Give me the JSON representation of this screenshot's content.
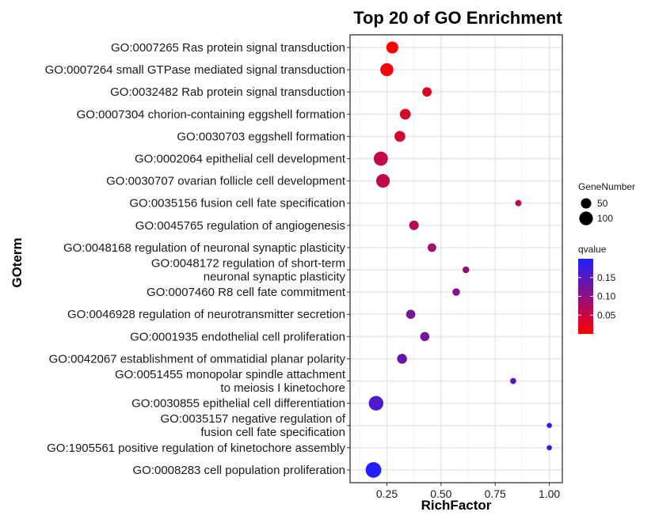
{
  "chart_data": {
    "type": "scatter",
    "title": "Top 20 of GO Enrichment",
    "xlabel": "RichFactor",
    "ylabel": "GOterm",
    "xlim": [
      0.08,
      1.06
    ],
    "xticks": [
      0.25,
      0.5,
      0.75,
      1.0
    ],
    "xtick_labels": [
      "0.25",
      "0.50",
      "0.75",
      "1.00"
    ],
    "grid": true,
    "terms": [
      {
        "label": [
          "GO:0007265 Ras protein signal transduction"
        ],
        "rich": 0.275,
        "genes": 72,
        "q": 0.001
      },
      {
        "label": [
          "GO:0007264 small GTPase mediated signal transduction"
        ],
        "rich": 0.25,
        "genes": 90,
        "q": 0.006
      },
      {
        "label": [
          "GO:0032482 Rab protein signal transduction"
        ],
        "rich": 0.435,
        "genes": 38,
        "q": 0.03
      },
      {
        "label": [
          "GO:0007304 chorion-containing eggshell formation"
        ],
        "rich": 0.335,
        "genes": 56,
        "q": 0.038
      },
      {
        "label": [
          "GO:0030703 eggshell formation"
        ],
        "rich": 0.31,
        "genes": 56,
        "q": 0.04
      },
      {
        "label": [
          "GO:0002064 epithelial cell development"
        ],
        "rich": 0.222,
        "genes": 110,
        "q": 0.055
      },
      {
        "label": [
          "GO:0030707 ovarian follicle cell development"
        ],
        "rich": 0.232,
        "genes": 100,
        "q": 0.056
      },
      {
        "label": [
          "GO:0035156 fusion cell fate specification"
        ],
        "rich": 0.857,
        "genes": 12,
        "q": 0.058
      },
      {
        "label": [
          "GO:0045765 regulation of angiogenesis"
        ],
        "rich": 0.375,
        "genes": 40,
        "q": 0.065
      },
      {
        "label": [
          "GO:0048168 regulation of neuronal synaptic plasticity"
        ],
        "rich": 0.458,
        "genes": 30,
        "q": 0.085
      },
      {
        "label": [
          "GO:0048172 regulation of short-term",
          "neuronal synaptic plasticity"
        ],
        "rich": 0.615,
        "genes": 14,
        "q": 0.095
      },
      {
        "label": [
          "GO:0007460 R8 cell fate commitment"
        ],
        "rich": 0.57,
        "genes": 20,
        "q": 0.11
      },
      {
        "label": [
          "GO:0046928 regulation of neurotransmitter secretion"
        ],
        "rich": 0.36,
        "genes": 36,
        "q": 0.12
      },
      {
        "label": [
          "GO:0001935 endothelial cell proliferation"
        ],
        "rich": 0.425,
        "genes": 36,
        "q": 0.125
      },
      {
        "label": [
          "GO:0042067 establishment of ommatidial planar polarity"
        ],
        "rich": 0.32,
        "genes": 44,
        "q": 0.135
      },
      {
        "label": [
          "GO:0051455 monopolar spindle attachment",
          "to meiosis I kinetochore"
        ],
        "rich": 0.833,
        "genes": 10,
        "q": 0.15
      },
      {
        "label": [
          "GO:0030855 epithelial cell differentiation"
        ],
        "rich": 0.2,
        "genes": 118,
        "q": 0.16
      },
      {
        "label": [
          "GO:0035157 negative regulation of",
          "fusion cell fate specification"
        ],
        "rich": 1.0,
        "genes": 6,
        "q": 0.185
      },
      {
        "label": [
          "GO:1905561 positive regulation of kinetochore assembly"
        ],
        "rich": 1.0,
        "genes": 6,
        "q": 0.185
      },
      {
        "label": [
          "GO:0008283 cell population proliferation"
        ],
        "rich": 0.188,
        "genes": 140,
        "q": 0.195
      }
    ],
    "legend_size": {
      "title": "GeneNumber",
      "values": [
        50,
        100
      ],
      "labels": [
        "50",
        "100"
      ]
    },
    "legend_color": {
      "title": "qvalue",
      "low_color": "#ff0000",
      "high_color": "#1f1fff",
      "range": [
        0.0,
        0.2
      ],
      "ticks": [
        0.05,
        0.1,
        0.15
      ],
      "tick_labels": [
        "0.05",
        "0.10",
        "0.15"
      ]
    }
  }
}
